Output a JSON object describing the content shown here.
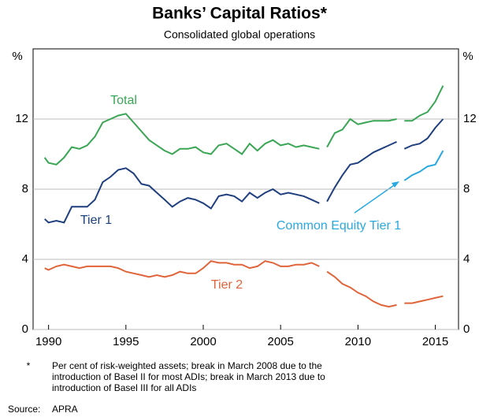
{
  "chart_data": {
    "type": "line",
    "title": "Banks’ Capital Ratios*",
    "subtitle": "Consolidated global operations",
    "ylabel": "%",
    "y2label": "%",
    "x": [
      1989.75,
      1990,
      1990.5,
      1991,
      1991.5,
      1992,
      1992.5,
      1993,
      1993.5,
      1994,
      1994.5,
      1995,
      1995.5,
      1996,
      1996.5,
      1997,
      1997.5,
      1998,
      1998.5,
      1999,
      1999.5,
      2000,
      2000.5,
      2001,
      2001.5,
      2002,
      2002.5,
      2003,
      2003.5,
      2004,
      2004.5,
      2005,
      2005.5,
      2006,
      2006.5,
      2007,
      2007.5,
      2007.75,
      2008,
      2008.5,
      2009,
      2009.5,
      2010,
      2010.5,
      2011,
      2011.5,
      2012,
      2012.5,
      2012.75,
      2013,
      2013.5,
      2014,
      2014.5,
      2015,
      2015.5
    ],
    "series": [
      {
        "name": "Total",
        "color": "#3aa655",
        "values": [
          9.8,
          9.5,
          9.4,
          9.8,
          10.4,
          10.3,
          10.5,
          11.0,
          11.8,
          12.0,
          12.2,
          12.3,
          11.8,
          11.3,
          10.8,
          10.5,
          10.2,
          10.0,
          10.3,
          10.3,
          10.4,
          10.1,
          10.0,
          10.5,
          10.6,
          10.3,
          10.0,
          10.6,
          10.2,
          10.6,
          10.8,
          10.5,
          10.6,
          10.4,
          10.5,
          10.4,
          10.3,
          null,
          10.4,
          11.2,
          11.4,
          12.0,
          11.7,
          11.8,
          11.9,
          11.9,
          11.9,
          12.0,
          null,
          11.9,
          11.9,
          12.2,
          12.4,
          13.0,
          13.9
        ]
      },
      {
        "name": "Tier 1",
        "color": "#1f3f7f",
        "values": [
          6.3,
          6.1,
          6.2,
          6.1,
          7.0,
          7.0,
          7.0,
          7.4,
          8.4,
          8.7,
          9.1,
          9.2,
          8.9,
          8.3,
          8.2,
          7.8,
          7.4,
          7.0,
          7.3,
          7.5,
          7.4,
          7.2,
          6.9,
          7.6,
          7.7,
          7.6,
          7.3,
          7.8,
          7.5,
          7.8,
          8.0,
          7.7,
          7.8,
          7.7,
          7.6,
          7.4,
          7.2,
          null,
          7.3,
          8.1,
          8.8,
          9.4,
          9.5,
          9.8,
          10.1,
          10.3,
          10.5,
          10.7,
          null,
          10.3,
          10.5,
          10.6,
          10.9,
          11.5,
          12.0
        ]
      },
      {
        "name": "Common Equity Tier 1",
        "color": "#2aa8e0",
        "values": [
          null,
          null,
          null,
          null,
          null,
          null,
          null,
          null,
          null,
          null,
          null,
          null,
          null,
          null,
          null,
          null,
          null,
          null,
          null,
          null,
          null,
          null,
          null,
          null,
          null,
          null,
          null,
          null,
          null,
          null,
          null,
          null,
          null,
          null,
          null,
          null,
          null,
          null,
          null,
          null,
          null,
          null,
          null,
          null,
          null,
          null,
          null,
          null,
          null,
          8.5,
          8.8,
          9.0,
          9.3,
          9.4,
          10.2
        ]
      },
      {
        "name": "Tier 2",
        "color": "#e0643a",
        "values": [
          3.5,
          3.4,
          3.6,
          3.7,
          3.6,
          3.5,
          3.6,
          3.6,
          3.6,
          3.6,
          3.5,
          3.3,
          3.2,
          3.1,
          3.0,
          3.1,
          3.0,
          3.1,
          3.3,
          3.2,
          3.2,
          3.5,
          3.9,
          3.8,
          3.8,
          3.7,
          3.7,
          3.5,
          3.6,
          3.9,
          3.8,
          3.6,
          3.6,
          3.7,
          3.7,
          3.8,
          3.6,
          null,
          3.3,
          3.0,
          2.6,
          2.4,
          2.1,
          1.9,
          1.6,
          1.4,
          1.3,
          1.4,
          null,
          1.5,
          1.5,
          1.6,
          1.7,
          1.8,
          1.9
        ]
      }
    ],
    "xlim": [
      1989,
      2016.5
    ],
    "xticks": [
      1990,
      1995,
      2000,
      2005,
      2010,
      2015
    ],
    "ylim": [
      0,
      16
    ],
    "yticks": [
      0,
      4,
      8,
      12
    ],
    "grid": true,
    "footnote_marker": "*",
    "footnote": [
      "Per cent of risk-weighted assets; break in March 2008 due to the",
      "introduction of Basel II for most ADIs; break in March 2013 due to",
      "introduction of Basel III for all ADIs"
    ],
    "source_label": "Source:",
    "source": "APRA"
  }
}
